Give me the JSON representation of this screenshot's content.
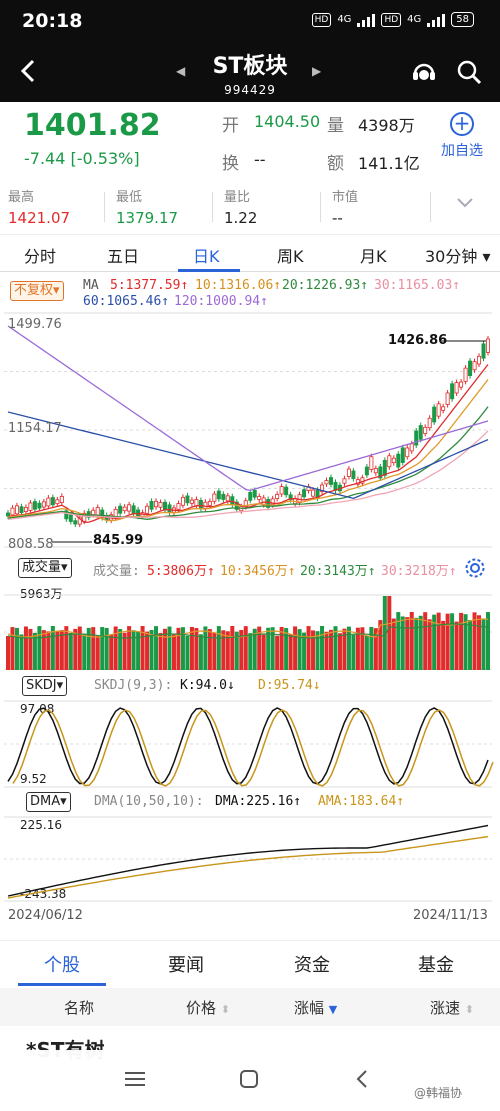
{
  "status": {
    "time": "20:18",
    "hd1": "HD",
    "net1": "4G",
    "hd2": "HD",
    "net2": "4G",
    "battery": "58"
  },
  "header": {
    "title": "ST板块",
    "code": "994429"
  },
  "quote": {
    "price": "1401.82",
    "change": "-7.44  [-0.53%]",
    "open_label": "开",
    "open": "1404.50",
    "volume_label": "量",
    "volume": "4398万",
    "turnover_label": "换",
    "turnover": "--",
    "amount_label": "额",
    "amount": "141.1亿",
    "add_watch": "加自选"
  },
  "stats": [
    {
      "label": "最高",
      "value": "1421.07",
      "color": "#e22b2b"
    },
    {
      "label": "最低",
      "value": "1379.17",
      "color": "#1a9a46"
    },
    {
      "label": "量比",
      "value": "1.22",
      "color": "#222222"
    },
    {
      "label": "市值",
      "value": "--",
      "color": "#222222"
    }
  ],
  "tabs": [
    "分时",
    "五日",
    "日K",
    "周K",
    "月K",
    "30分钟"
  ],
  "kline": {
    "fq": "不复权",
    "ma_title": "MA",
    "ma5": "5:1377.59↑",
    "ma10": "10:1316.06↑",
    "ma20": "20:1226.93↑",
    "ma30": "30:1165.03↑",
    "ma60": "60:1065.46↑",
    "ma120": "120:1000.94↑",
    "y_top": "1499.76",
    "y_mid": "1154.17",
    "y_bottom": "808.58",
    "high_mark": "1426.86",
    "low_mark": "845.99",
    "colors": {
      "ma5": "#e22b2b",
      "ma10": "#e09a2a",
      "ma20": "#2f8a3f",
      "ma30": "#f0a6b4",
      "ma60": "#2b4fa8",
      "ma120": "#9b6ad6",
      "up": "#e22b2b",
      "down": "#1a9a46"
    }
  },
  "volume": {
    "label": "成交量",
    "title": "成交量:",
    "ma5": "5:3806万↑",
    "ma10": "10:3456万↑",
    "ma20": "20:3143万↑",
    "ma30": "30:3218万↑",
    "y_top": "5963万"
  },
  "skdj": {
    "label": "SKDJ",
    "title": "SKDJ(9,3):",
    "k": "K:94.0↓",
    "d": "D:95.74↓",
    "y_top": "97.08",
    "y_bottom": "9.52"
  },
  "dma": {
    "label": "DMA",
    "title": "DMA(10,50,10):",
    "dma": "DMA:225.16↑",
    "ama": "AMA:183.64↑",
    "y_top": "225.16",
    "y_bottom": "-243.38"
  },
  "dates": {
    "start": "2024/06/12",
    "end": "2024/11/13"
  },
  "bottom_tabs": [
    "个股",
    "要闻",
    "资金",
    "基金"
  ],
  "table": {
    "name": "名称",
    "price": "价格",
    "change": "涨幅",
    "speed": "涨速"
  },
  "first_row": "*ST有树",
  "watermark": "@韩福协"
}
